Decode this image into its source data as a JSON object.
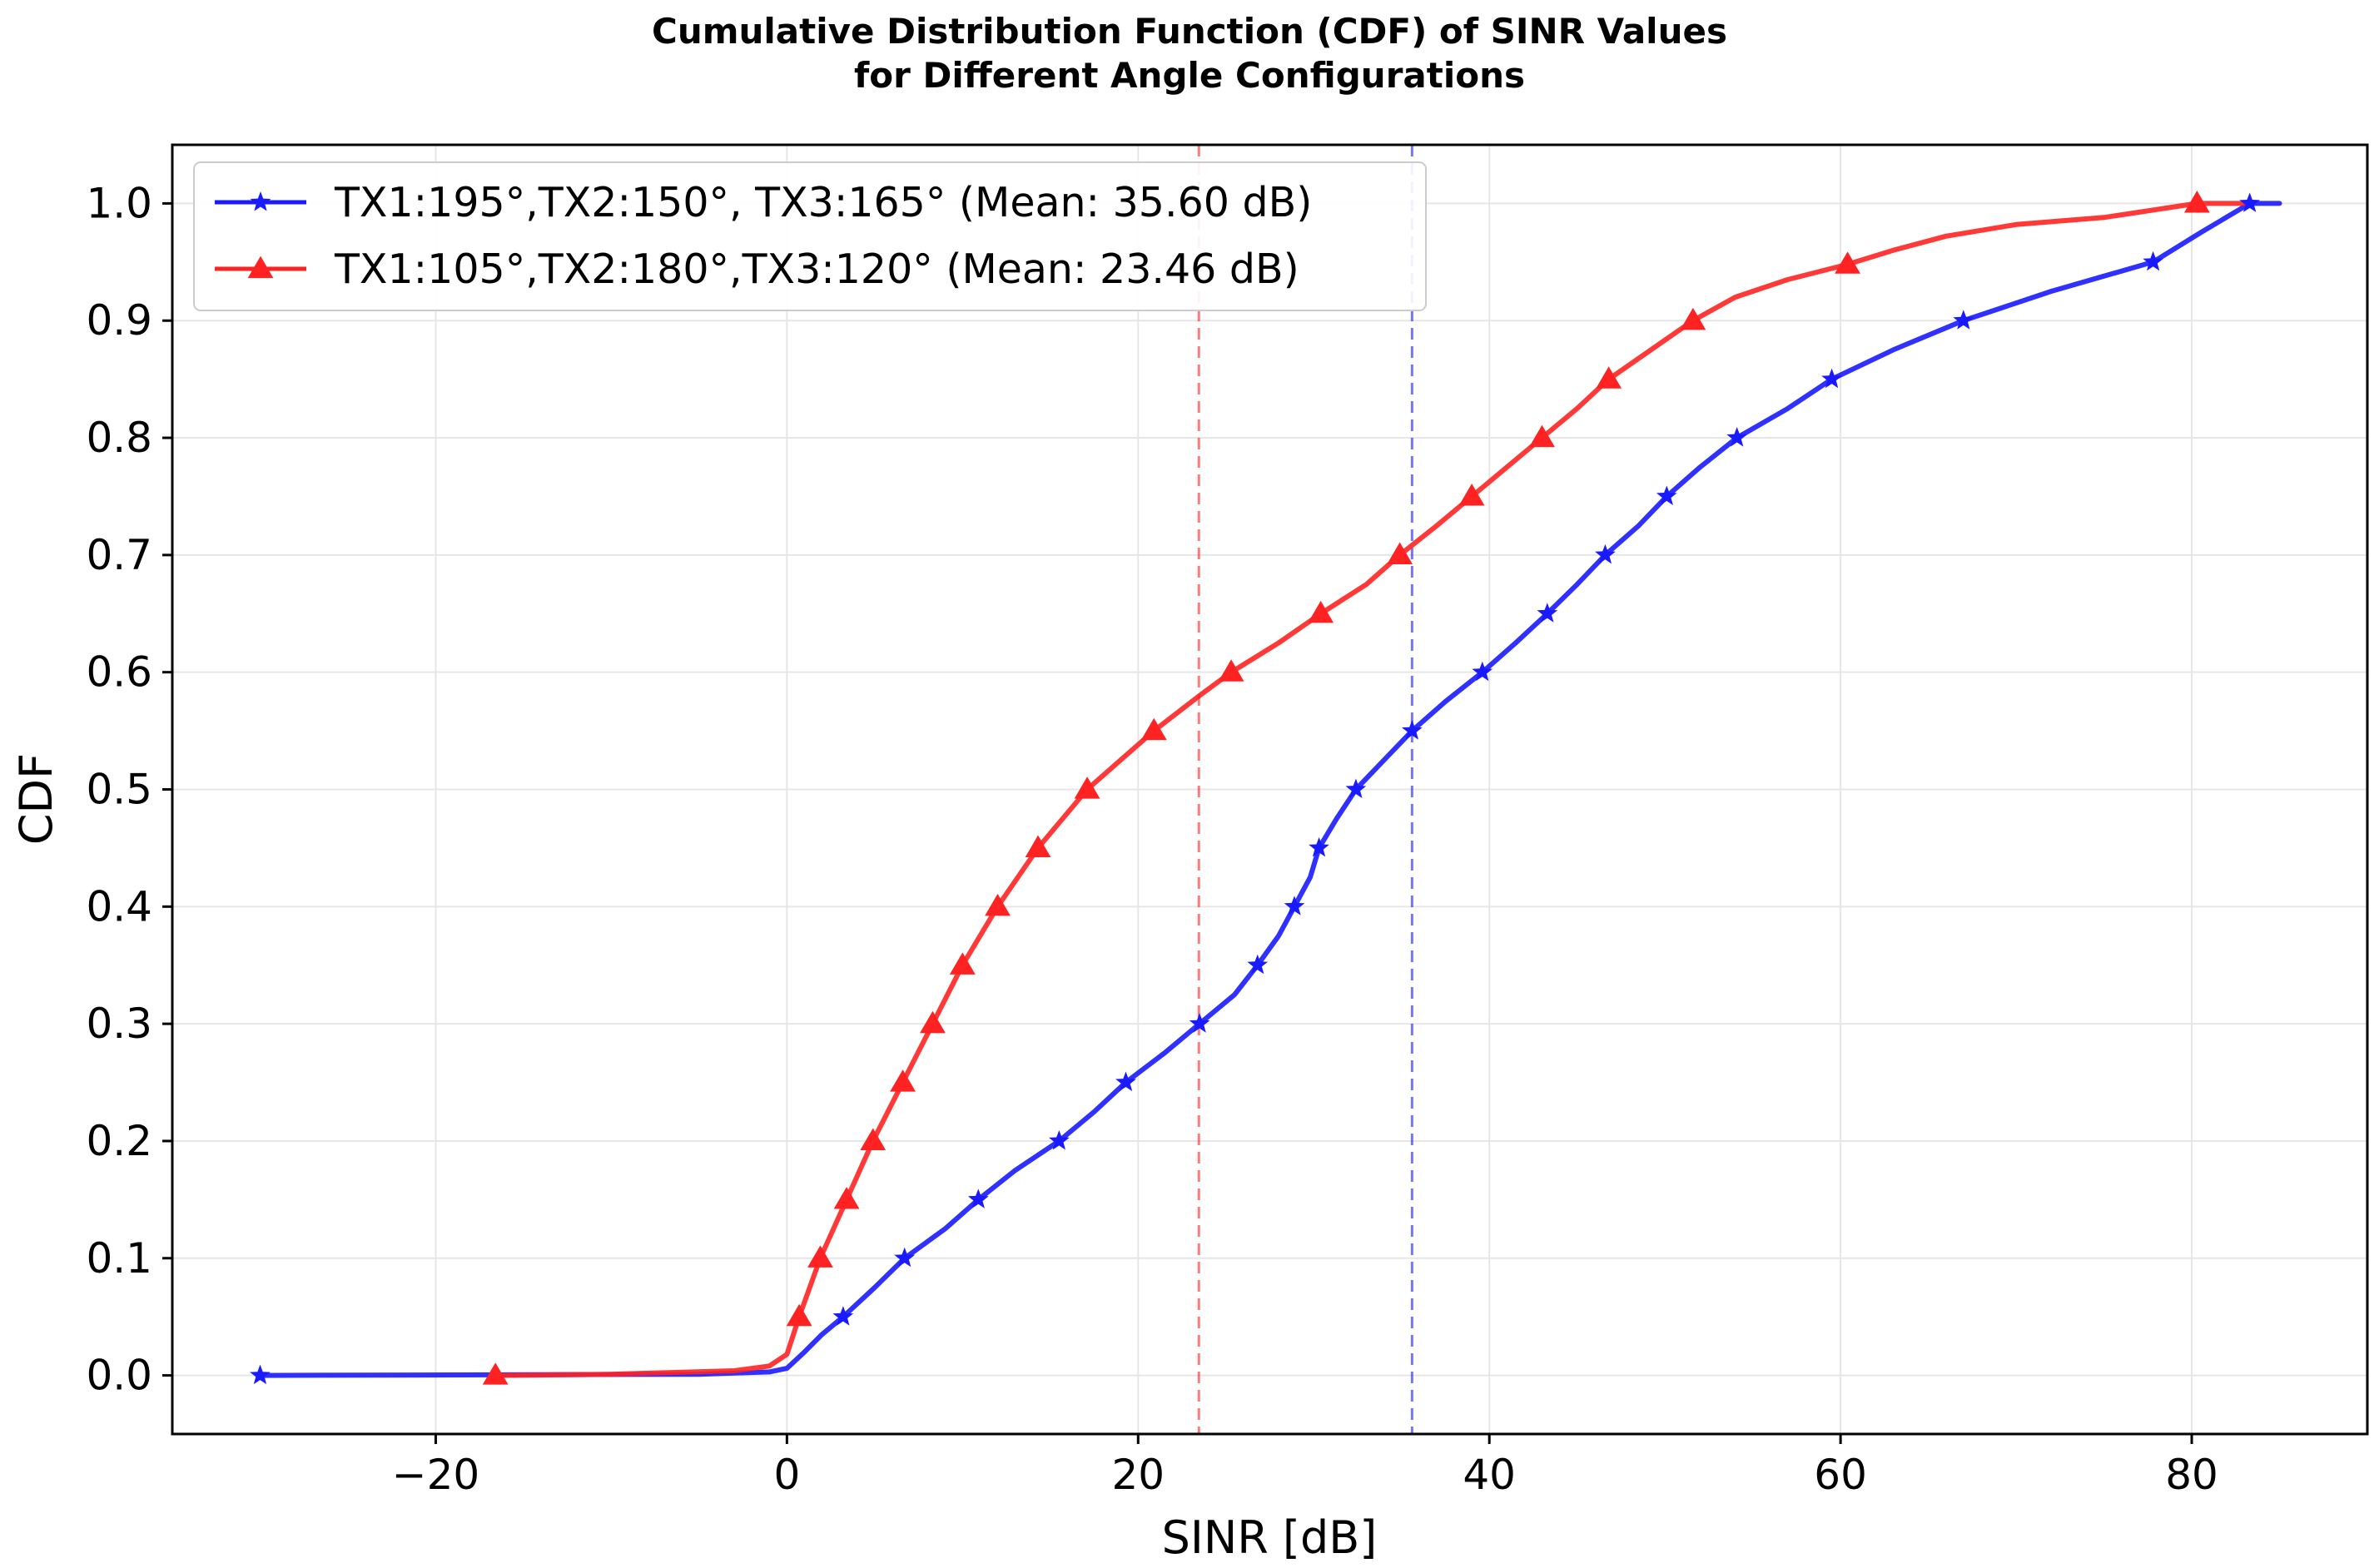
{
  "chart_data": {
    "type": "line",
    "title_lines": [
      "Cumulative Distribution Function (CDF) of SINR Values",
      "for Different Angle Configurations"
    ],
    "xlabel": "SINR [dB]",
    "ylabel": "CDF",
    "xlim": [
      -35,
      90
    ],
    "ylim": [
      -0.05,
      1.05
    ],
    "xticks": [
      -20,
      0,
      20,
      40,
      60,
      80
    ],
    "xtick_labels": [
      "−20",
      "0",
      "20",
      "40",
      "60",
      "80"
    ],
    "yticks": [
      0.0,
      0.1,
      0.2,
      0.3,
      0.4,
      0.5,
      0.6,
      0.7,
      0.8,
      0.9,
      1.0
    ],
    "ytick_labels": [
      "0.0",
      "0.1",
      "0.2",
      "0.3",
      "0.4",
      "0.5",
      "0.6",
      "0.7",
      "0.8",
      "0.9",
      "1.0"
    ],
    "grid": true,
    "legend_position": "top-left",
    "series": [
      {
        "name": "TX1:195°,TX2:150°, TX3:165° (Mean: 35.60 dB)",
        "color": "#1a1aff",
        "marker": "star",
        "mean": 35.6,
        "line": [
          [
            -30,
            0.0
          ],
          [
            -5,
            0.001
          ],
          [
            -1,
            0.003
          ],
          [
            0,
            0.006
          ],
          [
            1,
            0.02
          ],
          [
            2,
            0.035
          ],
          [
            3.2,
            0.05
          ],
          [
            5,
            0.075
          ],
          [
            6.7,
            0.1
          ],
          [
            9,
            0.125
          ],
          [
            10.9,
            0.15
          ],
          [
            13,
            0.175
          ],
          [
            15.5,
            0.2
          ],
          [
            17.5,
            0.225
          ],
          [
            19.3,
            0.25
          ],
          [
            21.5,
            0.275
          ],
          [
            23.5,
            0.3
          ],
          [
            25.5,
            0.325
          ],
          [
            26.8,
            0.35
          ],
          [
            28,
            0.375
          ],
          [
            28.9,
            0.4
          ],
          [
            29.8,
            0.425
          ],
          [
            30.3,
            0.45
          ],
          [
            31.3,
            0.475
          ],
          [
            32.4,
            0.5
          ],
          [
            34,
            0.525
          ],
          [
            35.6,
            0.55
          ],
          [
            37.5,
            0.575
          ],
          [
            39.6,
            0.6
          ],
          [
            41.5,
            0.625
          ],
          [
            43.3,
            0.65
          ],
          [
            45,
            0.675
          ],
          [
            46.6,
            0.7
          ],
          [
            48.5,
            0.725
          ],
          [
            50.1,
            0.75
          ],
          [
            52,
            0.775
          ],
          [
            54.1,
            0.8
          ],
          [
            57,
            0.825
          ],
          [
            59.5,
            0.85
          ],
          [
            63,
            0.875
          ],
          [
            67,
            0.9
          ],
          [
            72,
            0.925
          ],
          [
            77.8,
            0.95
          ],
          [
            80.5,
            0.975
          ],
          [
            83.3,
            1.0
          ],
          [
            85,
            1.0
          ]
        ],
        "markers": [
          [
            -30,
            0.0
          ],
          [
            3.2,
            0.05
          ],
          [
            6.7,
            0.1
          ],
          [
            10.9,
            0.15
          ],
          [
            15.5,
            0.2
          ],
          [
            19.3,
            0.25
          ],
          [
            23.5,
            0.3
          ],
          [
            26.8,
            0.35
          ],
          [
            28.9,
            0.4
          ],
          [
            30.3,
            0.45
          ],
          [
            32.4,
            0.5
          ],
          [
            35.6,
            0.55
          ],
          [
            39.6,
            0.6
          ],
          [
            43.3,
            0.65
          ],
          [
            46.6,
            0.7
          ],
          [
            50.1,
            0.75
          ],
          [
            54.1,
            0.8
          ],
          [
            59.5,
            0.85
          ],
          [
            67,
            0.9
          ],
          [
            77.8,
            0.95
          ],
          [
            83.3,
            1.0
          ]
        ]
      },
      {
        "name": "TX1:105°,TX2:180°,TX3:120° (Mean: 23.46 dB)",
        "color": "#ff2222",
        "marker": "triangle",
        "mean": 23.46,
        "line": [
          [
            -16.6,
            0.0
          ],
          [
            -10,
            0.001
          ],
          [
            -3,
            0.004
          ],
          [
            -1,
            0.008
          ],
          [
            0,
            0.018
          ],
          [
            0.7,
            0.05
          ],
          [
            1.9,
            0.1
          ],
          [
            3.4,
            0.15
          ],
          [
            4.9,
            0.2
          ],
          [
            6.6,
            0.25
          ],
          [
            8.3,
            0.3
          ],
          [
            10,
            0.35
          ],
          [
            12,
            0.4
          ],
          [
            14.3,
            0.45
          ],
          [
            17.1,
            0.5
          ],
          [
            19,
            0.525
          ],
          [
            20.9,
            0.55
          ],
          [
            23.5,
            0.58
          ],
          [
            25.3,
            0.6
          ],
          [
            28,
            0.625
          ],
          [
            30.4,
            0.65
          ],
          [
            33,
            0.675
          ],
          [
            34.9,
            0.7
          ],
          [
            37,
            0.725
          ],
          [
            39,
            0.75
          ],
          [
            41,
            0.775
          ],
          [
            43,
            0.8
          ],
          [
            45,
            0.825
          ],
          [
            46.8,
            0.85
          ],
          [
            49.2,
            0.875
          ],
          [
            51.6,
            0.9
          ],
          [
            54,
            0.92
          ],
          [
            57,
            0.935
          ],
          [
            60.4,
            0.948
          ],
          [
            63,
            0.96
          ],
          [
            66,
            0.972
          ],
          [
            70,
            0.982
          ],
          [
            75,
            0.988
          ],
          [
            80.3,
            1.0
          ],
          [
            82,
            1.0
          ],
          [
            83.3,
            1.0
          ]
        ],
        "markers": [
          [
            -16.6,
            0.0
          ],
          [
            0.7,
            0.05
          ],
          [
            1.9,
            0.1
          ],
          [
            3.4,
            0.15
          ],
          [
            4.9,
            0.2
          ],
          [
            6.6,
            0.25
          ],
          [
            8.3,
            0.3
          ],
          [
            10,
            0.35
          ],
          [
            12,
            0.4
          ],
          [
            14.3,
            0.45
          ],
          [
            17.1,
            0.5
          ],
          [
            20.9,
            0.55
          ],
          [
            25.3,
            0.6
          ],
          [
            30.4,
            0.65
          ],
          [
            34.9,
            0.7
          ],
          [
            39,
            0.75
          ],
          [
            43,
            0.8
          ],
          [
            46.8,
            0.85
          ],
          [
            51.6,
            0.9
          ],
          [
            60.4,
            0.948
          ],
          [
            80.3,
            1.0
          ]
        ]
      }
    ]
  }
}
